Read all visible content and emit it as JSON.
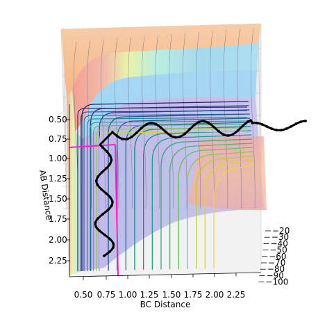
{
  "chart_data": {
    "type": "surface3d-contour",
    "xlabel": "BC Distance",
    "ylabel": "AB Distance",
    "xticks": [
      "0.50",
      "0.75",
      "1.00",
      "1.25",
      "1.50",
      "1.75",
      "2.00",
      "2.25"
    ],
    "yticks": [
      "0.50",
      "0.75",
      "1.00",
      "1.25",
      "1.50",
      "1.75",
      "2.00",
      "2.25"
    ],
    "zticks": [
      "−20",
      "−30",
      "−40",
      "−50",
      "−60",
      "−70",
      "−80",
      "−90",
      "−100"
    ],
    "xlim": [
      0.4,
      2.5
    ],
    "ylim": [
      0.4,
      2.4
    ],
    "zlim": [
      -100,
      -15
    ],
    "crosshair": {
      "bc": 0.74,
      "ab": 0.74,
      "color": "#ff1fc8"
    },
    "trajectory_color": "#000000",
    "trajectory_ab": [
      {
        "bc": 0.74,
        "ab": 2.35
      },
      {
        "bc": 0.72,
        "ab": 2.12
      },
      {
        "bc": 0.9,
        "ab": 1.85
      },
      {
        "bc": 0.68,
        "ab": 1.55
      },
      {
        "bc": 0.85,
        "ab": 1.25
      },
      {
        "bc": 0.7,
        "ab": 1.0
      },
      {
        "bc": 0.8,
        "ab": 0.8
      }
    ],
    "trajectory_bc": [
      {
        "bc": 0.8,
        "ab": 0.78
      },
      {
        "bc": 1.0,
        "ab": 0.7
      },
      {
        "bc": 1.25,
        "ab": 0.76
      },
      {
        "bc": 1.5,
        "ab": 0.68
      },
      {
        "bc": 1.8,
        "ab": 0.76
      },
      {
        "bc": 2.1,
        "ab": 0.7
      },
      {
        "bc": 2.45,
        "ab": 0.74
      }
    ],
    "grid": true
  }
}
